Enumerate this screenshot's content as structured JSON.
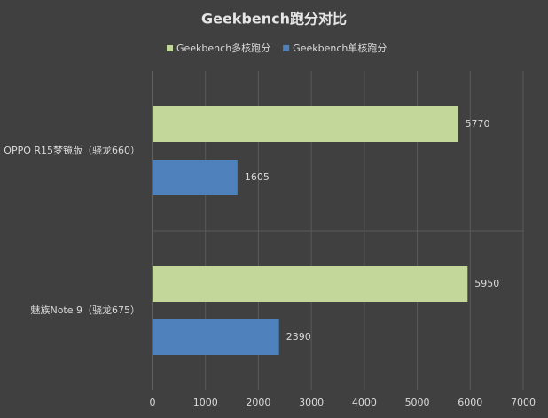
{
  "chart_data": {
    "type": "bar",
    "orientation": "horizontal",
    "title": "Geekbench跑分对比",
    "categories": [
      "OPPO R15梦镜版（骁龙660）",
      "魅族Note 9（骁龙675）"
    ],
    "series": [
      {
        "name": "Geekbench多核跑分",
        "color": "#c4d79b",
        "values": [
          5770,
          5950
        ]
      },
      {
        "name": "Geekbench单核跑分",
        "color": "#4f81bd",
        "values": [
          1605,
          2390
        ]
      }
    ],
    "xlim": [
      0,
      7000
    ],
    "xticks": [
      0,
      1000,
      2000,
      3000,
      4000,
      5000,
      6000,
      7000
    ],
    "grid": true,
    "legend": "top"
  }
}
